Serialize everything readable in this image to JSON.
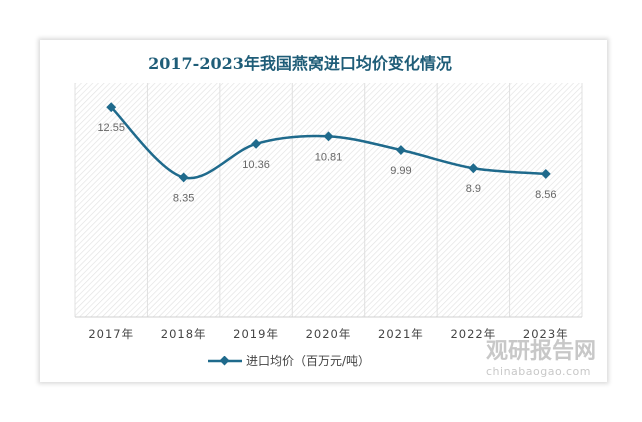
{
  "chart_data": {
    "type": "line",
    "title": "2017-2023年我国燕窝进口均价变化情况",
    "categories": [
      "2017年",
      "2018年",
      "2019年",
      "2020年",
      "2021年",
      "2022年",
      "2023年"
    ],
    "series": [
      {
        "name": "进口均价（百万元/吨）",
        "values": [
          12.55,
          8.35,
          10.36,
          10.81,
          9.99,
          8.9,
          8.56
        ]
      }
    ],
    "ylim": [
      0,
      14
    ],
    "grid": "vertical",
    "legend": "bottom",
    "color": "#1f6a8c",
    "smooth": true
  },
  "watermark": {
    "name": "观研报告网",
    "url_text": "chinabaogao.com"
  }
}
